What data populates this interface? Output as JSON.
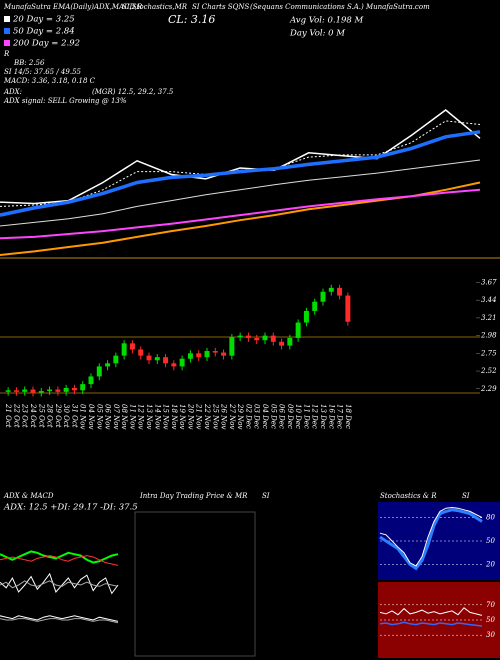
{
  "header": {
    "site": "MunafaSutra EMA(Daily)ADX,MACD,R",
    "site2": "SI,Stochastics,MR",
    "site3": "SI Charts SQNS",
    "company": "(Sequans Communications S.A.) MunafaSutra.com",
    "close": "CL: 3.16",
    "avg_vol": "Avg Vol: 0.198  M",
    "day_vol": "Day Vol: 0   M",
    "ma20": "20 Day = 3.25",
    "ma50": "50 Day = 2.84",
    "ma200": "200 Day = 2.92",
    "r": "R",
    "bb": "BB: 2.56",
    "rsi": "SI 14/5: 37.65 / 49.55",
    "macd": "MACD: 3.36, 3.18, 0.18  C",
    "adx": "ADX:",
    "mgr": "(MGR) 12.5, 29.2, 37.5",
    "signal": "ADX  signal: SELL Growing @ 13%"
  },
  "chart_data": [
    {
      "type": "line",
      "series": [
        {
          "color": "#ffffff",
          "width": 1.5,
          "values": [
            2.28,
            2.26,
            2.3,
            2.55,
            2.85,
            2.66,
            2.6,
            2.75,
            2.72,
            2.96,
            2.92,
            2.88,
            3.2,
            3.55,
            3.16
          ]
        },
        {
          "color": "#ffffff",
          "width": 1,
          "dash": "2,2",
          "values": [
            2.22,
            2.24,
            2.28,
            2.45,
            2.7,
            2.7,
            2.66,
            2.72,
            2.74,
            2.9,
            2.93,
            2.93,
            3.1,
            3.4,
            3.35
          ]
        },
        {
          "color": "#1f6fff",
          "width": 3.5,
          "values": [
            2.1,
            2.2,
            2.28,
            2.4,
            2.55,
            2.62,
            2.65,
            2.7,
            2.74,
            2.8,
            2.85,
            2.9,
            3.02,
            3.18,
            3.25
          ]
        },
        {
          "color": "#dddddd",
          "width": 1,
          "values": [
            1.95,
            2.0,
            2.05,
            2.12,
            2.22,
            2.3,
            2.38,
            2.45,
            2.52,
            2.58,
            2.63,
            2.68,
            2.74,
            2.8,
            2.86
          ]
        },
        {
          "color": "#ff9900",
          "width": 2,
          "values": [
            1.55,
            1.6,
            1.66,
            1.72,
            1.8,
            1.88,
            1.95,
            2.03,
            2.1,
            2.18,
            2.24,
            2.3,
            2.36,
            2.45,
            2.55
          ]
        },
        {
          "color": "#ff44ff",
          "width": 2,
          "values": [
            1.78,
            1.8,
            1.84,
            1.88,
            1.93,
            1.98,
            2.04,
            2.1,
            2.16,
            2.22,
            2.27,
            2.32,
            2.36,
            2.41,
            2.45
          ]
        }
      ]
    },
    {
      "type": "candlestick",
      "categories": [
        "21 Oct",
        "22 Oct",
        "23 Oct",
        "24 Oct",
        "25 Oct",
        "28 Oct",
        "29 Oct",
        "30 Oct",
        "31 Oct",
        "01 Nov",
        "04 Nov",
        "05 Nov",
        "06 Nov",
        "07 Nov",
        "08 Nov",
        "11 Nov",
        "12 Nov",
        "13 Nov",
        "14 Nov",
        "15 Nov",
        "18 Nov",
        "19 Nov",
        "20 Nov",
        "21 Nov",
        "22 Nov",
        "25 Nov",
        "26 Nov",
        "27 Nov",
        "29 Nov",
        "02 Dec",
        "03 Dec",
        "04 Dec",
        "05 Dec",
        "06 Dec",
        "09 Dec",
        "10 Dec",
        "11 Dec",
        "12 Dec",
        "13 Dec",
        "16 Dec",
        "17 Dec",
        "18 Dec"
      ],
      "open": [
        2.25,
        2.27,
        2.25,
        2.28,
        2.24,
        2.26,
        2.28,
        2.25,
        2.3,
        2.27,
        2.35,
        2.45,
        2.58,
        2.62,
        2.72,
        2.88,
        2.8,
        2.72,
        2.66,
        2.7,
        2.62,
        2.58,
        2.68,
        2.75,
        2.7,
        2.78,
        2.76,
        2.72,
        2.96,
        2.98,
        2.95,
        2.92,
        2.98,
        2.9,
        2.85,
        2.95,
        3.15,
        3.3,
        3.42,
        3.55,
        3.6,
        3.5
      ],
      "high": [
        2.31,
        2.31,
        2.32,
        2.32,
        2.3,
        2.32,
        2.32,
        2.34,
        2.34,
        2.39,
        2.49,
        2.62,
        2.66,
        2.76,
        2.92,
        2.92,
        2.84,
        2.76,
        2.74,
        2.74,
        2.66,
        2.72,
        2.79,
        2.79,
        2.82,
        2.82,
        2.8,
        3.0,
        3.02,
        3.02,
        2.99,
        3.02,
        3.02,
        2.94,
        2.99,
        3.19,
        3.34,
        3.46,
        3.59,
        3.64,
        3.64,
        3.54
      ],
      "low": [
        2.2,
        2.2,
        2.2,
        2.19,
        2.19,
        2.21,
        2.2,
        2.2,
        2.22,
        2.22,
        2.3,
        2.4,
        2.53,
        2.57,
        2.67,
        2.75,
        2.67,
        2.61,
        2.61,
        2.57,
        2.53,
        2.53,
        2.63,
        2.65,
        2.65,
        2.71,
        2.67,
        2.67,
        2.91,
        2.9,
        2.87,
        2.87,
        2.85,
        2.8,
        2.8,
        2.9,
        3.1,
        3.25,
        3.37,
        3.5,
        3.45,
        3.11
      ],
      "close": [
        2.27,
        2.25,
        2.28,
        2.24,
        2.26,
        2.28,
        2.25,
        2.3,
        2.27,
        2.35,
        2.45,
        2.58,
        2.62,
        2.72,
        2.88,
        2.8,
        2.72,
        2.66,
        2.7,
        2.62,
        2.58,
        2.68,
        2.75,
        2.7,
        2.78,
        2.76,
        2.72,
        2.96,
        2.98,
        2.95,
        2.92,
        2.98,
        2.9,
        2.85,
        2.95,
        3.15,
        3.3,
        3.42,
        3.55,
        3.6,
        3.5,
        3.16
      ],
      "up_color": "#00dd00",
      "down_color": "#ff2a2a",
      "ylim": [
        2.17,
        3.78
      ],
      "yticks": [
        3.67,
        3.44,
        3.21,
        2.98,
        2.75,
        2.52,
        2.29
      ]
    },
    {
      "type": "line",
      "title": "ADX  & MACD",
      "subtitle": "ADX: 12.5  +DI: 29.17  -DI: 37.5",
      "ylim": [
        0,
        100
      ],
      "series": [
        {
          "color": "#00ff00",
          "width": 2,
          "values": [
            72,
            70,
            68,
            70,
            72,
            74,
            73,
            71,
            70,
            69,
            71,
            73,
            72,
            71,
            68,
            66,
            67,
            69,
            71,
            72
          ]
        },
        {
          "color": "#ff3333",
          "width": 1,
          "values": [
            68,
            69,
            70,
            69,
            68,
            67,
            69,
            70,
            71,
            70,
            68,
            67,
            69,
            70,
            71,
            70,
            68,
            66,
            65,
            64
          ]
        },
        {
          "color": "#ffffff",
          "width": 1,
          "values": [
            52,
            48,
            55,
            45,
            50,
            56,
            47,
            52,
            58,
            45,
            50,
            55,
            48,
            54,
            57,
            46,
            52,
            55,
            44,
            50
          ]
        },
        {
          "color": "#aaaaaa",
          "width": 1,
          "values": [
            50,
            52,
            48,
            50,
            53,
            50,
            49,
            51,
            53,
            50,
            49,
            52,
            51,
            50,
            52,
            50,
            49,
            51,
            50,
            49
          ]
        },
        {
          "color": "#ffffff",
          "width": 1,
          "values": [
            28,
            27,
            26,
            28,
            27,
            26,
            25,
            27,
            28,
            27,
            26,
            27,
            28,
            27,
            26,
            25,
            27,
            26,
            25,
            24
          ]
        },
        {
          "color": "#aaaaaa",
          "width": 1,
          "values": [
            26,
            25,
            25,
            26,
            26,
            25,
            24,
            25,
            26,
            26,
            25,
            25,
            26,
            26,
            25,
            24,
            25,
            25,
            24,
            23
          ]
        }
      ]
    },
    {
      "type": "line",
      "title": "Intra Day Trading Price & MR",
      "title2": "SI",
      "series": []
    },
    {
      "type": "line",
      "title": "Stochastics & R",
      "title2": "SI",
      "background": "#00007a",
      "ylim": [
        0,
        100
      ],
      "yticks": [
        80,
        50,
        20
      ],
      "series": [
        {
          "color": "#2a7fff",
          "width": 3,
          "values": [
            55,
            50,
            45,
            40,
            30,
            20,
            15,
            25,
            45,
            70,
            85,
            88,
            90,
            89,
            87,
            85,
            80,
            75
          ]
        },
        {
          "color": "#ffffff",
          "width": 1,
          "values": [
            60,
            58,
            50,
            42,
            35,
            22,
            18,
            30,
            55,
            75,
            88,
            92,
            93,
            92,
            90,
            88,
            84,
            80
          ]
        }
      ]
    },
    {
      "type": "line",
      "background": "#8b0000",
      "ylim": [
        0,
        100
      ],
      "yticks": [
        70,
        50,
        30
      ],
      "series": [
        {
          "color": "#ffffff",
          "width": 1,
          "values": [
            60,
            58,
            62,
            57,
            65,
            58,
            60,
            63,
            59,
            61,
            58,
            60,
            62,
            57,
            66,
            60,
            58,
            56
          ]
        },
        {
          "color": "#3366ff",
          "width": 1.5,
          "values": [
            45,
            46,
            44,
            45,
            47,
            45,
            44,
            46,
            45,
            44,
            46,
            45,
            44,
            46,
            45,
            44,
            43,
            42
          ]
        }
      ]
    }
  ]
}
